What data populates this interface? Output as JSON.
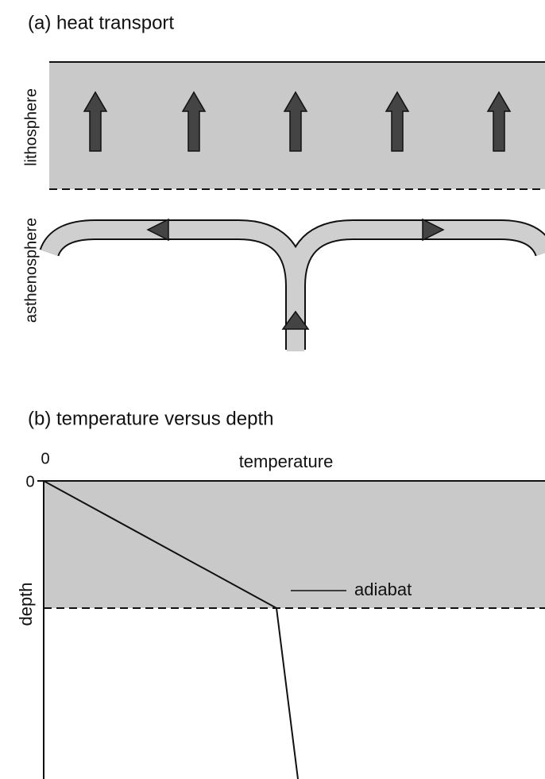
{
  "panel_a": {
    "title": "(a) heat transport",
    "layers": {
      "upper": "lithosphere",
      "lower": "asthenosphere"
    }
  },
  "panel_b": {
    "title": "(b) temperature versus depth",
    "x_origin": "0",
    "y_origin": "0",
    "x_label": "temperature",
    "y_label": "depth",
    "curve_label": "adiabat"
  }
}
